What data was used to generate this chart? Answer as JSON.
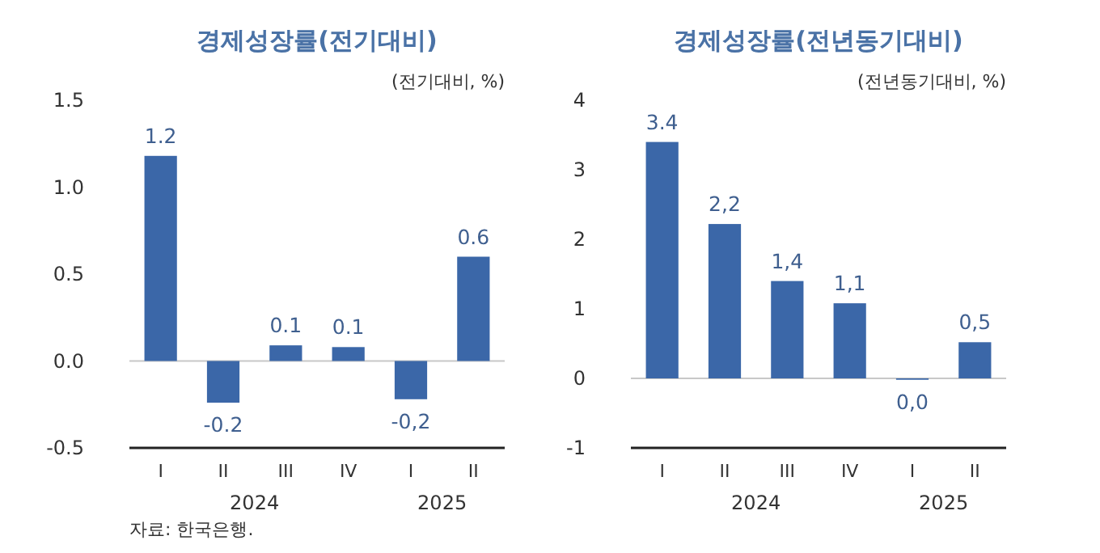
{
  "chart_data": [
    {
      "type": "bar",
      "title": "경제성장률(전기대비)",
      "ylabel": "(전기대비, %)",
      "categories": [
        "I",
        "II",
        "III",
        "IV",
        "I",
        "II"
      ],
      "values": [
        1.18,
        -0.24,
        0.09,
        0.08,
        -0.22,
        0.6
      ],
      "value_labels": [
        "1.2",
        "-0.2",
        "0.1",
        "0.1",
        "-0,2",
        "0.6"
      ],
      "color": "#3b67a8",
      "ylim": [
        -0.5,
        1.5
      ],
      "yticks": [
        {
          "value": -0.5,
          "label": "-0.5"
        },
        {
          "value": 0,
          "label": "0.0"
        },
        {
          "value": 0.5,
          "label": "0.5"
        },
        {
          "value": 1,
          "label": "1.0"
        },
        {
          "value": 1.5,
          "label": "1.5"
        }
      ],
      "annotations": [
        "2024",
        "2025",
        "자료: 한국은행."
      ]
    },
    {
      "type": "bar",
      "title": "경제성장률(전년동기대비)",
      "ylabel": "(전년동기대비, %)",
      "categories": [
        "I",
        "II",
        "III",
        "IV",
        "I",
        "II"
      ],
      "values": [
        3.4,
        2.22,
        1.4,
        1.08,
        -0.02,
        0.52
      ],
      "value_labels": [
        "3.4",
        "2,2",
        "1,4",
        "1,1",
        "0,0",
        "0,5"
      ],
      "color": "#3b67a8",
      "ylim": [
        -1,
        4
      ],
      "yticks": [
        -1,
        0,
        1,
        2,
        3,
        4
      ],
      "annotations": [
        "2024",
        "2025"
      ]
    }
  ]
}
